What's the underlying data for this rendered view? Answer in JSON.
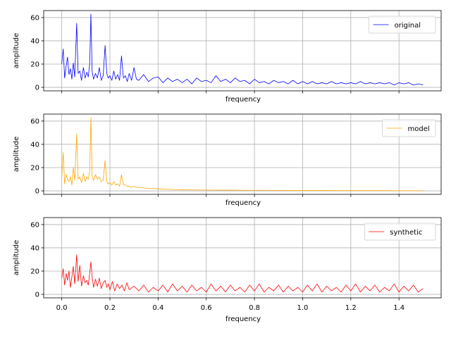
{
  "chart_data": [
    {
      "type": "line",
      "xlabel": "frequency",
      "ylabel": "amplitude",
      "xlim": [
        -0.075,
        1.575
      ],
      "ylim": [
        -3,
        66
      ],
      "x_ticks": [
        0.0,
        0.2,
        0.4,
        0.6,
        0.8,
        1.0,
        1.2,
        1.4
      ],
      "y_ticks": [
        0,
        20,
        40,
        60
      ],
      "grid": true,
      "show_x_tick_labels": false,
      "legend": {
        "placement": "top-right"
      },
      "series": [
        {
          "name": "original",
          "color": "#0000ff",
          "x": [
            0.0,
            0.006,
            0.012,
            0.018,
            0.024,
            0.03,
            0.036,
            0.042,
            0.048,
            0.054,
            0.062,
            0.068,
            0.075,
            0.082,
            0.09,
            0.097,
            0.104,
            0.11,
            0.116,
            0.121,
            0.126,
            0.132,
            0.14,
            0.148,
            0.156,
            0.164,
            0.172,
            0.18,
            0.187,
            0.193,
            0.2,
            0.208,
            0.216,
            0.224,
            0.232,
            0.24,
            0.248,
            0.256,
            0.264,
            0.272,
            0.28,
            0.29,
            0.3,
            0.31,
            0.32,
            0.34,
            0.36,
            0.38,
            0.4,
            0.42,
            0.44,
            0.46,
            0.48,
            0.5,
            0.52,
            0.54,
            0.56,
            0.58,
            0.6,
            0.62,
            0.64,
            0.66,
            0.68,
            0.7,
            0.72,
            0.74,
            0.76,
            0.78,
            0.8,
            0.82,
            0.84,
            0.86,
            0.88,
            0.9,
            0.92,
            0.94,
            0.96,
            0.98,
            1.0,
            1.02,
            1.04,
            1.06,
            1.08,
            1.1,
            1.12,
            1.14,
            1.16,
            1.18,
            1.2,
            1.22,
            1.24,
            1.26,
            1.28,
            1.3,
            1.32,
            1.34,
            1.36,
            1.38,
            1.4,
            1.42,
            1.44,
            1.46,
            1.48,
            1.5
          ],
          "y": [
            20,
            33,
            8,
            18,
            26,
            11,
            16,
            7,
            21,
            9,
            55,
            12,
            14,
            6,
            17,
            8,
            13,
            9,
            20,
            63,
            14,
            7,
            12,
            8,
            17,
            6,
            10,
            36,
            12,
            8,
            10,
            6,
            14,
            7,
            11,
            6,
            27,
            8,
            10,
            5,
            12,
            6,
            17,
            7,
            6,
            11,
            5,
            8,
            9,
            4,
            8,
            5,
            7,
            4,
            7,
            3,
            8,
            5,
            6,
            4,
            10,
            5,
            7,
            4,
            8,
            5,
            6,
            3,
            7,
            4,
            5,
            3,
            6,
            4,
            5,
            3,
            6,
            3,
            5,
            3,
            5,
            3,
            4,
            3,
            5,
            3,
            4,
            3,
            4,
            3,
            5,
            3,
            4,
            3,
            4,
            3,
            4,
            2,
            4,
            3,
            4,
            2,
            3,
            2
          ]
        }
      ]
    },
    {
      "type": "line",
      "xlabel": "frequency",
      "ylabel": "amplitude",
      "xlim": [
        -0.075,
        1.575
      ],
      "ylim": [
        -3,
        66
      ],
      "x_ticks": [
        0.0,
        0.2,
        0.4,
        0.6,
        0.8,
        1.0,
        1.2,
        1.4
      ],
      "y_ticks": [
        0,
        20,
        40,
        60
      ],
      "grid": true,
      "show_x_tick_labels": false,
      "legend": {
        "placement": "top-right"
      },
      "series": [
        {
          "name": "model",
          "color": "#ffa500",
          "x": [
            0.0,
            0.006,
            0.012,
            0.018,
            0.024,
            0.03,
            0.036,
            0.042,
            0.048,
            0.054,
            0.062,
            0.068,
            0.075,
            0.082,
            0.09,
            0.097,
            0.104,
            0.11,
            0.116,
            0.121,
            0.126,
            0.132,
            0.14,
            0.148,
            0.156,
            0.164,
            0.172,
            0.18,
            0.187,
            0.193,
            0.2,
            0.208,
            0.216,
            0.224,
            0.232,
            0.24,
            0.248,
            0.256,
            0.264,
            0.272,
            0.28,
            0.29,
            0.3,
            0.31,
            0.32,
            0.34,
            0.36,
            0.38,
            0.4,
            0.42,
            0.44,
            0.46,
            0.48,
            0.5,
            0.55,
            0.6,
            0.65,
            0.7,
            0.75,
            0.8,
            0.85,
            0.9,
            0.95,
            1.0,
            1.05,
            1.1,
            1.15,
            1.2,
            1.25,
            1.3,
            1.35,
            1.4,
            1.45,
            1.5
          ],
          "y": [
            12,
            33,
            6,
            14,
            10,
            8,
            12,
            5,
            20,
            9,
            49,
            10,
            12,
            7,
            15,
            8,
            12,
            10,
            17,
            63,
            13,
            9,
            14,
            10,
            12,
            8,
            9,
            26,
            8,
            6,
            7,
            5,
            8,
            5,
            6,
            4,
            14,
            5,
            5,
            4,
            4,
            3,
            4,
            3,
            3,
            2.5,
            2.2,
            2,
            1.8,
            1.5,
            1.3,
            1.1,
            1,
            0.9,
            0.8,
            0.7,
            0.6,
            0.6,
            0.5,
            0.5,
            0.4,
            0.4,
            0.3,
            0.3,
            0.3,
            0.3,
            0.2,
            0.2,
            0.2,
            0.2,
            0.2,
            0.1,
            0.1,
            0.1
          ]
        }
      ]
    },
    {
      "type": "line",
      "xlabel": "frequency",
      "ylabel": "amplitude",
      "xlim": [
        -0.075,
        1.575
      ],
      "ylim": [
        -3,
        66
      ],
      "x_ticks": [
        0.0,
        0.2,
        0.4,
        0.6,
        0.8,
        1.0,
        1.2,
        1.4
      ],
      "y_ticks": [
        0,
        20,
        40,
        60
      ],
      "grid": true,
      "show_x_tick_labels": true,
      "x_tick_labels": [
        "0.0",
        "0.2",
        "0.4",
        "0.6",
        "0.8",
        "1.0",
        "1.2",
        "1.4"
      ],
      "y_tick_labels": [
        "0",
        "20",
        "40",
        "60"
      ],
      "legend": {
        "placement": "top-right"
      },
      "series": [
        {
          "name": "synthetic",
          "color": "#ff0000",
          "x": [
            0.0,
            0.006,
            0.012,
            0.018,
            0.024,
            0.03,
            0.036,
            0.042,
            0.048,
            0.054,
            0.062,
            0.068,
            0.075,
            0.082,
            0.09,
            0.097,
            0.104,
            0.11,
            0.116,
            0.121,
            0.126,
            0.132,
            0.14,
            0.148,
            0.156,
            0.164,
            0.172,
            0.18,
            0.187,
            0.193,
            0.2,
            0.21,
            0.22,
            0.23,
            0.24,
            0.25,
            0.26,
            0.27,
            0.28,
            0.3,
            0.32,
            0.34,
            0.36,
            0.38,
            0.4,
            0.42,
            0.44,
            0.46,
            0.48,
            0.5,
            0.52,
            0.54,
            0.56,
            0.58,
            0.6,
            0.62,
            0.64,
            0.66,
            0.68,
            0.7,
            0.72,
            0.74,
            0.76,
            0.78,
            0.8,
            0.82,
            0.84,
            0.86,
            0.88,
            0.9,
            0.92,
            0.94,
            0.96,
            0.98,
            1.0,
            1.02,
            1.04,
            1.06,
            1.08,
            1.1,
            1.12,
            1.14,
            1.16,
            1.18,
            1.2,
            1.22,
            1.24,
            1.26,
            1.28,
            1.3,
            1.32,
            1.34,
            1.36,
            1.38,
            1.4,
            1.42,
            1.44,
            1.46,
            1.48,
            1.5
          ],
          "y": [
            14,
            22,
            8,
            18,
            12,
            20,
            6,
            15,
            24,
            9,
            34,
            11,
            25,
            7,
            16,
            10,
            12,
            8,
            18,
            28,
            15,
            6,
            13,
            7,
            14,
            5,
            10,
            12,
            6,
            9,
            4,
            11,
            3,
            9,
            5,
            8,
            3,
            10,
            4,
            7,
            3,
            8,
            2,
            6,
            3,
            8,
            2,
            9,
            3,
            7,
            2,
            8,
            3,
            6,
            2,
            9,
            3,
            7,
            2,
            8,
            3,
            6,
            2,
            8,
            3,
            9,
            2,
            6,
            3,
            8,
            2,
            7,
            3,
            6,
            2,
            8,
            3,
            9,
            2,
            7,
            3,
            6,
            2,
            8,
            3,
            9,
            2,
            7,
            3,
            8,
            2,
            6,
            3,
            9,
            2,
            7,
            3,
            8,
            2,
            5
          ]
        }
      ]
    }
  ]
}
